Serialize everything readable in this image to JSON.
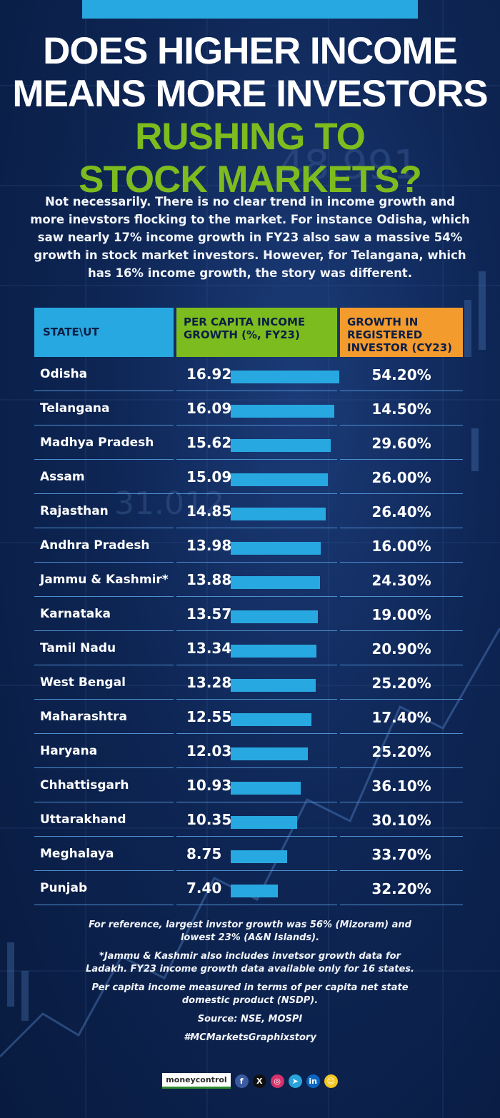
{
  "header": {
    "title_line1": "DOES HIGHER INCOME",
    "title_line2": "MEANS MORE INVESTORS",
    "title_line3": "RUSHING TO",
    "title_line4": "STOCK MARKETS?",
    "intro": "Not necessarily. There is no clear trend in income growth and more inevstors flocking to the market. For instance Odisha, which saw nearly 17% income growth in FY23 also saw a massive 54% growth in stock market investors. However, for Telangana, which has 16% income growth, the story was different."
  },
  "background": {
    "ticker_1": "48.991",
    "ticker_2": "31.012"
  },
  "columns": {
    "state": "STATE\\UT",
    "income": "PER CAPITA INCOME GROWTH (%, FY23)",
    "growth": "GROWTH IN REGISTERED INVESTOR (CY23)"
  },
  "chart_data": {
    "type": "table",
    "title": "Does higher income means more investors rushing to stock markets?",
    "columns": [
      "STATE\\UT",
      "PER CAPITA INCOME GROWTH (%, FY23)",
      "GROWTH IN REGISTERED INVESTOR (CY23)"
    ],
    "bar_max": 16.92,
    "rows": [
      {
        "state": "Odisha",
        "income": 16.92,
        "income_label": "16.92",
        "growth": "54.20%"
      },
      {
        "state": "Telangana",
        "income": 16.09,
        "income_label": "16.09",
        "growth": "14.50%"
      },
      {
        "state": "Madhya Pradesh",
        "income": 15.62,
        "income_label": "15.62",
        "growth": "29.60%"
      },
      {
        "state": "Assam",
        "income": 15.09,
        "income_label": "15.09",
        "growth": "26.00%"
      },
      {
        "state": "Rajasthan",
        "income": 14.85,
        "income_label": "14.85",
        "growth": "26.40%"
      },
      {
        "state": "Andhra Pradesh",
        "income": 13.98,
        "income_label": "13.98",
        "growth": "16.00%"
      },
      {
        "state": "Jammu & Kashmir*",
        "income": 13.88,
        "income_label": "13.88",
        "growth": "24.30%"
      },
      {
        "state": "Karnataka",
        "income": 13.57,
        "income_label": "13.57",
        "growth": "19.00%"
      },
      {
        "state": "Tamil Nadu",
        "income": 13.34,
        "income_label": "13.34",
        "growth": "20.90%"
      },
      {
        "state": "West Bengal",
        "income": 13.28,
        "income_label": "13.28",
        "growth": "25.20%"
      },
      {
        "state": "Maharashtra",
        "income": 12.55,
        "income_label": "12.55",
        "growth": "17.40%"
      },
      {
        "state": "Haryana",
        "income": 12.03,
        "income_label": "12.03",
        "growth": "25.20%"
      },
      {
        "state": "Chhattisgarh",
        "income": 10.93,
        "income_label": "10.93",
        "growth": "36.10%"
      },
      {
        "state": "Uttarakhand",
        "income": 10.35,
        "income_label": "10.35",
        "growth": "30.10%"
      },
      {
        "state": "Meghalaya",
        "income": 8.75,
        "income_label": "8.75",
        "growth": "33.70%"
      },
      {
        "state": "Punjab",
        "income": 7.4,
        "income_label": "7.40",
        "growth": "32.20%"
      }
    ]
  },
  "notes": {
    "reference": "For reference, largest invstor growth was 56% (Mizoram) and lowest 23% (A&N Islands).",
    "jk": "*Jammu & Kashmir also includes invetsor growth data for Ladakh. FY23 income growth data available only for 16 states.",
    "nsdp": "Per capita income measured in terms of per capita net state domestic product (NSDP).",
    "source": "Source: NSE, MOSPI",
    "hashtag": "#MCMarketsGraphixstory"
  },
  "footer": {
    "brand": "moneycontrol",
    "icons": [
      {
        "name": "facebook-icon",
        "glyph": "f",
        "color": "#3b5ba0"
      },
      {
        "name": "x-icon",
        "glyph": "X",
        "color": "#111111"
      },
      {
        "name": "instagram-icon",
        "glyph": "◎",
        "color": "#d6336c"
      },
      {
        "name": "telegram-icon",
        "glyph": "➤",
        "color": "#2aa3dc"
      },
      {
        "name": "linkedin-icon",
        "glyph": "in",
        "color": "#0b66c2"
      },
      {
        "name": "snapchat-icon",
        "glyph": "☺",
        "color": "#f3c623"
      }
    ]
  }
}
